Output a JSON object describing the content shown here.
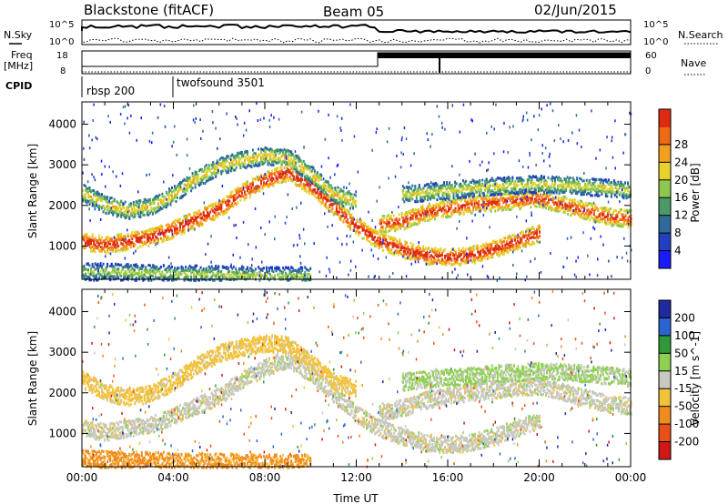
{
  "header": {
    "radar": "Blackstone (fitACF)",
    "beam": "Beam 05",
    "date": "02/Jun/2015"
  },
  "panel_labels": {
    "nsky": "N.Sky",
    "nsearch": "N.Search",
    "freq_line1": "Freq",
    "freq_line2": "[MHz]",
    "nave": "Nave",
    "cpid": "CPID",
    "nsky_tick_top": "10^5",
    "nsky_tick_bottom": "10^0",
    "nsearch_tick_top": "10^5",
    "nsearch_tick_bottom": "10^0",
    "freq_tick_top": "18",
    "freq_tick_bottom": "8",
    "nave_tick_top": "60",
    "nave_tick_bottom": "0"
  },
  "cpid_segments": [
    {
      "label": "rbsp 200",
      "start_hour": 0
    },
    {
      "label": "twofsound 3501",
      "start_hour": 4
    }
  ],
  "time_axis": {
    "label": "Time UT",
    "ticks": [
      "00:00",
      "04:00",
      "08:00",
      "12:00",
      "16:00",
      "20:00",
      "00:00"
    ],
    "hours": [
      0,
      4,
      8,
      12,
      16,
      20,
      24
    ]
  },
  "range_axis": {
    "label": "Slant Range [km]",
    "ticks": [
      "1000",
      "2000",
      "3000",
      "4000"
    ],
    "values": [
      1000,
      2000,
      3000,
      4000
    ],
    "ylim": [
      180,
      4550
    ]
  },
  "power_colorbar": {
    "label": "Power [dB]",
    "ticks": [
      "4",
      "8",
      "12",
      "16",
      "20",
      "24",
      "28"
    ],
    "colors": [
      "#1a1aff",
      "#2040c0",
      "#2e6a9a",
      "#4a9a6a",
      "#8cc850",
      "#e6d22a",
      "#f2a01e",
      "#ee6a14",
      "#e02a10"
    ]
  },
  "velocity_colorbar": {
    "label": "Velocity [m s^-1]",
    "ticks": [
      "200",
      "100",
      "50",
      "15",
      "-15",
      "-50",
      "-100",
      "-200"
    ],
    "colors": [
      "#1e2a9e",
      "#2a64d2",
      "#2e9a3a",
      "#8ed050",
      "#c8c8c0",
      "#f2c23a",
      "#f08c1e",
      "#e8501a",
      "#d01818"
    ]
  },
  "chart_data": {
    "type": "heatmap",
    "title": "Blackstone (fitACF) Beam 05 02/Jun/2015",
    "xlabel": "Time UT",
    "xlim": [
      0,
      24
    ],
    "scatter_bands": [
      {
        "name": "band-a",
        "points": [
          [
            0,
            1150
          ],
          [
            1,
            1050
          ],
          [
            2,
            1150
          ],
          [
            3,
            1250
          ],
          [
            4,
            1450
          ],
          [
            5,
            1700
          ],
          [
            6,
            1950
          ],
          [
            7,
            2350
          ],
          [
            8,
            2650
          ],
          [
            9,
            2850
          ],
          [
            10,
            2500
          ],
          [
            11,
            2000
          ],
          [
            12,
            1500
          ],
          [
            13,
            1150
          ],
          [
            14,
            950
          ],
          [
            15,
            800
          ],
          [
            16,
            750
          ],
          [
            17,
            800
          ],
          [
            18,
            950
          ],
          [
            19,
            1150
          ],
          [
            20,
            1350
          ]
        ],
        "power": 20,
        "velocity": 0
      },
      {
        "name": "band-b",
        "points": [
          [
            0,
            2350
          ],
          [
            1,
            2050
          ],
          [
            2,
            1900
          ],
          [
            3,
            2000
          ],
          [
            4,
            2300
          ],
          [
            5,
            2700
          ],
          [
            6,
            3000
          ],
          [
            7,
            3150
          ],
          [
            8,
            3250
          ],
          [
            9,
            3200
          ],
          [
            10,
            2800
          ],
          [
            11,
            2300
          ],
          [
            12,
            2100
          ]
        ],
        "power": 10,
        "velocity": -30
      },
      {
        "name": "band-c",
        "points": [
          [
            13,
            1550
          ],
          [
            14,
            1650
          ],
          [
            15,
            1850
          ],
          [
            16,
            1950
          ],
          [
            17,
            2050
          ],
          [
            18,
            2100
          ],
          [
            19,
            2150
          ],
          [
            20,
            2200
          ],
          [
            21,
            2050
          ],
          [
            22,
            1900
          ],
          [
            23,
            1750
          ],
          [
            24,
            1700
          ]
        ],
        "power": 18,
        "velocity": 0
      },
      {
        "name": "band-d",
        "points": [
          [
            14,
            2300
          ],
          [
            16,
            2400
          ],
          [
            18,
            2500
          ],
          [
            20,
            2550
          ],
          [
            22,
            2500
          ],
          [
            24,
            2400
          ]
        ],
        "power": 8,
        "velocity": 20
      },
      {
        "name": "band-e",
        "points": [
          [
            0,
            400
          ],
          [
            2,
            380
          ],
          [
            4,
            350
          ],
          [
            6,
            330
          ],
          [
            8,
            300
          ],
          [
            10,
            300
          ]
        ],
        "power": 6,
        "velocity": -60
      }
    ],
    "power_units": "dB",
    "velocity_units": "m s^-1"
  }
}
